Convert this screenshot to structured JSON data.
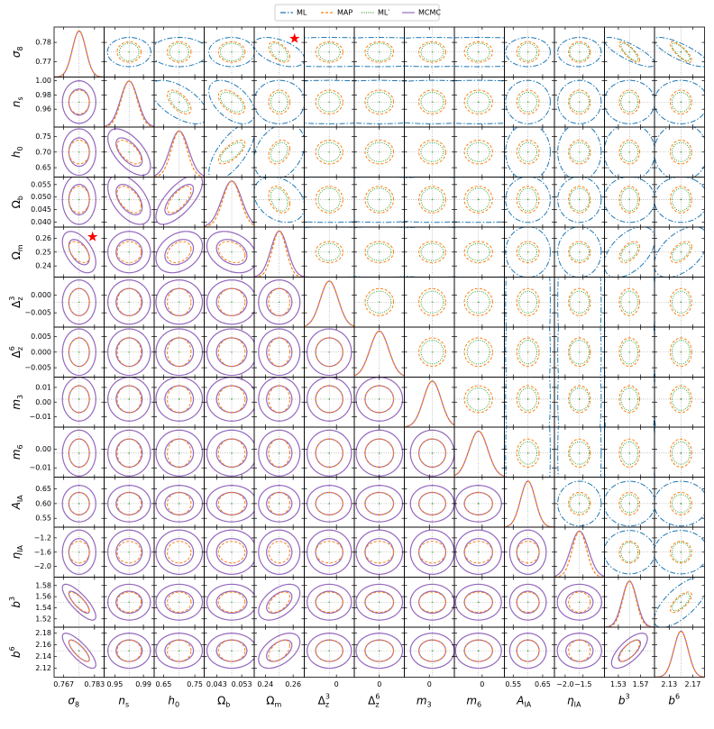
{
  "chart_data": {
    "type": "corner",
    "series": [
      {
        "name": "ML",
        "color": "#1f77b4",
        "dash": "6 2 1.5 2",
        "sigma": [
          0.005,
          0.02,
          0.06,
          0.006,
          0.012,
          0.02,
          0.02,
          0.04,
          0.04,
          0.05,
          0.4,
          0.03,
          0.03
        ]
      },
      {
        "name": "MAP",
        "color": "#ff7f0e",
        "dash": "3 2",
        "sigma": [
          0.0035,
          0.011,
          0.025,
          0.0035,
          0.005,
          0.0025,
          0.003,
          0.006,
          0.005,
          0.025,
          0.2,
          0.012,
          0.012
        ]
      },
      {
        "name": "ML′",
        "color": "#2ca02c",
        "dash": "1 1.5",
        "sigma": [
          0.003,
          0.009,
          0.02,
          0.003,
          0.004,
          0.002,
          0.0025,
          0.005,
          0.004,
          0.02,
          0.18,
          0.01,
          0.01
        ]
      },
      {
        "name": "MCMC",
        "color": "#9467bd",
        "dash": "",
        "sigma": [
          0.0035,
          0.012,
          0.03,
          0.004,
          0.006,
          0.0025,
          0.003,
          0.006,
          0.005,
          0.025,
          0.25,
          0.013,
          0.012
        ]
      }
    ],
    "params": [
      {
        "symbol": "σ",
        "sub": "8",
        "center": 0.775,
        "lim": [
          0.762,
          0.788
        ],
        "xticks": [
          0.767,
          0.783
        ],
        "yticks": [
          0.77,
          0.78
        ]
      },
      {
        "symbol": "n",
        "sub": "s",
        "center": 0.97,
        "lim": [
          0.935,
          1.005
        ],
        "xticks": [
          0.95,
          0.99
        ],
        "yticks": [
          0.96,
          0.98,
          {
            "value": 1,
            "label": "1.00"
          }
        ]
      },
      {
        "symbol": "h",
        "sub": "0",
        "center": 0.7,
        "lim": [
          0.62,
          0.78
        ],
        "xticks": [
          0.65,
          0.75
        ],
        "yticks": [
          0.65,
          {
            "value": 0.7,
            "label": "0.70"
          },
          0.75
        ]
      },
      {
        "symbol": "Ω",
        "sub": "b",
        "center": 0.049,
        "lim": [
          0.038,
          0.058
        ],
        "xticks": [
          0.043,
          0.053
        ],
        "yticks": [
          {
            "value": 0.04,
            "label": "0.040"
          },
          0.045,
          {
            "value": 0.05,
            "label": "0.050"
          },
          0.055
        ]
      },
      {
        "symbol": "Ω",
        "sub": "m",
        "center": 0.25,
        "lim": [
          0.232,
          0.268
        ],
        "xticks": [
          0.24,
          0.26
        ],
        "yticks": [
          0.24,
          0.25,
          0.26
        ]
      },
      {
        "symbol": "Δ",
        "sub": "z",
        "sup": "3",
        "center": -0.002,
        "lim": [
          -0.009,
          0.005
        ],
        "xticks": [
          0
        ],
        "yticks": [
          {
            "value": -0.005,
            "label": "−0.005"
          },
          {
            "value": 0,
            "label": "0.000"
          }
        ]
      },
      {
        "symbol": "Δ",
        "sub": "z",
        "sup": "6",
        "center": 0,
        "lim": [
          -0.008,
          0.008
        ],
        "xticks": [
          0
        ],
        "yticks": [
          {
            "value": -0.005,
            "label": "−0.005"
          },
          {
            "value": 0,
            "label": "0.000"
          },
          0.005
        ]
      },
      {
        "symbol": "m",
        "sub": "3",
        "center": 0.002,
        "lim": [
          -0.017,
          0.017
        ],
        "xticks": [
          0
        ],
        "yticks": [
          {
            "value": -0.01,
            "label": "−0.01"
          },
          {
            "value": 0,
            "label": "0.00"
          },
          0.01
        ]
      },
      {
        "symbol": "m",
        "sub": "6",
        "center": -0.002,
        "lim": [
          -0.015,
          0.012
        ],
        "xticks": [
          0
        ],
        "yticks": [
          {
            "value": -0.01,
            "label": "−0.01"
          },
          {
            "value": 0,
            "label": "0.00"
          }
        ]
      },
      {
        "symbol": "A",
        "sub": "IA",
        "center": 0.6,
        "lim": [
          0.52,
          0.69
        ],
        "xticks": [
          0.55,
          0.65
        ],
        "yticks": [
          0.55,
          {
            "value": 0.6,
            "label": "0.60"
          },
          0.65
        ]
      },
      {
        "symbol": "η",
        "sub": "IA",
        "center": -1.6,
        "lim": [
          -2.3,
          -0.9
        ],
        "xticks": [
          {
            "value": -2,
            "label": "−2.0"
          },
          {
            "value": -1.5,
            "label": "−1.5"
          }
        ],
        "yticks": [
          {
            "value": -2,
            "label": "−2.0"
          },
          {
            "value": -1.6,
            "label": "−1.6"
          },
          {
            "value": -1.2,
            "label": "−1.2"
          }
        ]
      },
      {
        "symbol": "b",
        "sup": "3",
        "center": 1.55,
        "lim": [
          1.505,
          1.595
        ],
        "xticks": [
          1.53,
          1.57
        ],
        "yticks": [
          1.52,
          1.54,
          1.56,
          1.58
        ]
      },
      {
        "symbol": "b",
        "sup": "6",
        "center": 2.15,
        "lim": [
          2.105,
          2.19
        ],
        "xticks": [
          2.13,
          2.17
        ],
        "yticks": [
          2.12,
          2.14,
          2.16,
          2.18
        ]
      }
    ],
    "correlations": [
      {
        "params": [
          0,
          4
        ],
        "r": -0.5
      },
      {
        "params": [
          0,
          11
        ],
        "r": -0.8
      },
      {
        "params": [
          0,
          12
        ],
        "r": -0.8
      },
      {
        "params": [
          1,
          2
        ],
        "r": -0.6
      },
      {
        "params": [
          1,
          3
        ],
        "r": -0.5
      },
      {
        "params": [
          2,
          3
        ],
        "r": 0.7
      },
      {
        "params": [
          2,
          4
        ],
        "r": 0.3
      },
      {
        "params": [
          3,
          4
        ],
        "r": -0.3
      },
      {
        "params": [
          4,
          11
        ],
        "r": 0.5
      },
      {
        "params": [
          4,
          12
        ],
        "r": 0.5
      },
      {
        "params": [
          11,
          12
        ],
        "r": 0.7
      }
    ],
    "star": {
      "params": [
        0,
        4
      ],
      "values": [
        0.782,
        0.261
      ],
      "color": "#ff0000"
    }
  }
}
